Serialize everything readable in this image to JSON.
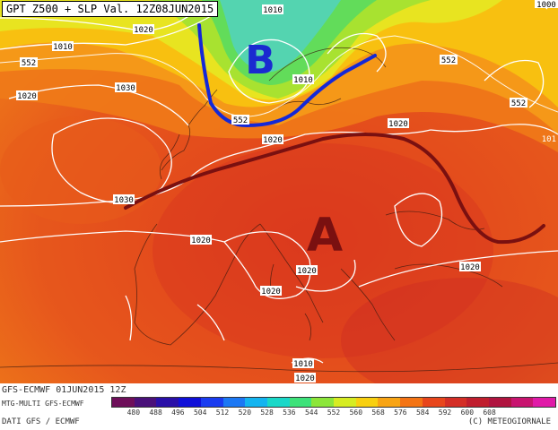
{
  "title": "GPT Z500 + SLP Val. 12Z08JUN2015",
  "centers": {
    "low": "B",
    "high": "A"
  },
  "isobar_labels": [
    "1010",
    "1020",
    "1010",
    "1010",
    "1030",
    "1020",
    "1030",
    "1020",
    "1020",
    "1020",
    "1020",
    "1020",
    "1020",
    "1020",
    "1010",
    "1020",
    "1000",
    "101"
  ],
  "geopotential_labels": [
    "552",
    "552",
    "552",
    "552",
    "552",
    "552"
  ],
  "footer": {
    "model_run": "GFS-ECMWF 01JUN2015 12Z",
    "product": "MTG-MULTI GFS-ECMWF",
    "source": "DATI GFS / ECMWF",
    "copyright": "(C) METEOGIORNALE"
  },
  "scale": {
    "values": [
      "480",
      "488",
      "496",
      "504",
      "512",
      "520",
      "528",
      "536",
      "544",
      "552",
      "560",
      "568",
      "576",
      "584",
      "592",
      "600",
      "608"
    ],
    "colors": [
      "#6e0f5a",
      "#4a117a",
      "#2a10a8",
      "#1010d8",
      "#1a3cf0",
      "#1c78f4",
      "#14b4f0",
      "#1ad8c8",
      "#3ee27a",
      "#8ce63a",
      "#d6ec22",
      "#f8d010",
      "#f8a414",
      "#f47414",
      "#e8461c",
      "#d42e26",
      "#c01e2e",
      "#b01440",
      "#c81470",
      "#e01aa8"
    ]
  }
}
